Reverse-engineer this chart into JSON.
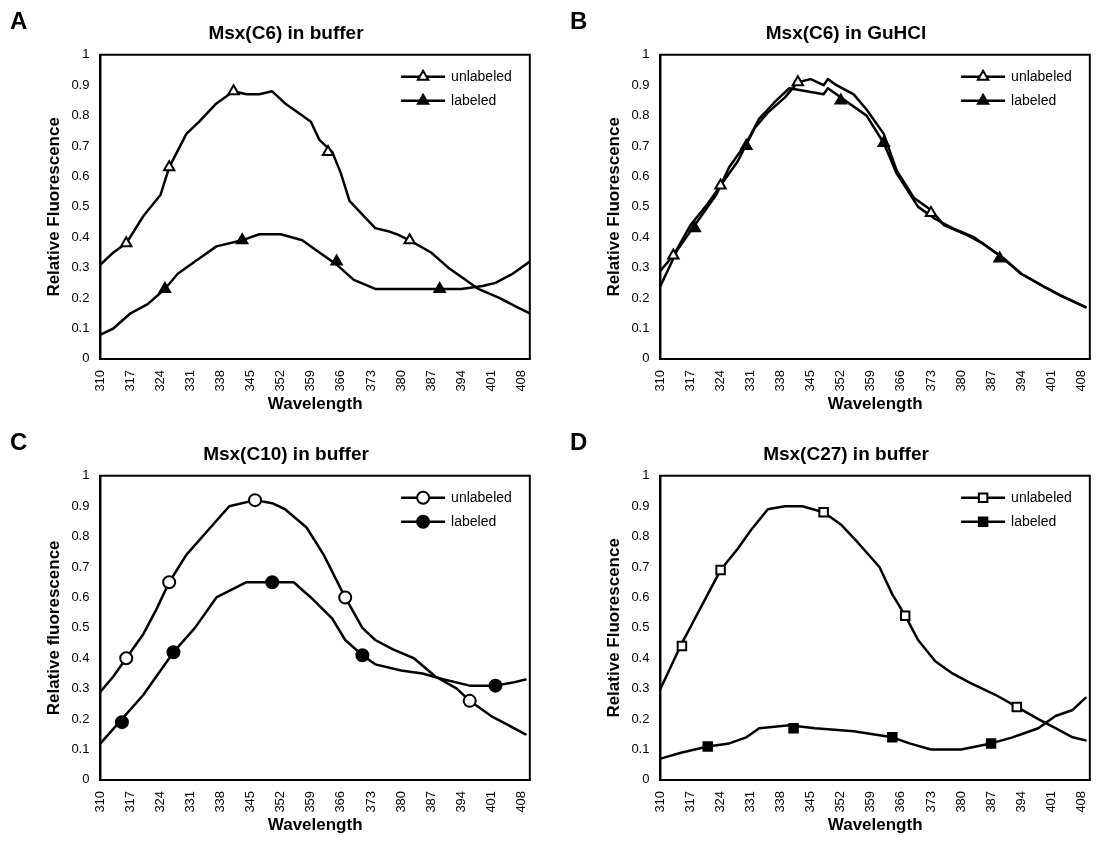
{
  "chart_data": [
    {
      "type": "line",
      "title": "Msx(C6) in buffer",
      "xlabel": "Wavelength",
      "ylabel": "Relative Fluorescence",
      "annotations": [
        "A"
      ],
      "xlim": [
        310,
        410
      ],
      "xticks": [
        310,
        317,
        324,
        331,
        338,
        345,
        352,
        359,
        366,
        373,
        380,
        387,
        394,
        401,
        408
      ],
      "ylim": [
        0,
        1
      ],
      "yticks": [
        0,
        0.1,
        0.2,
        0.3,
        0.4,
        0.5,
        0.6,
        0.7,
        0.8,
        0.9,
        1
      ],
      "legend": "top right",
      "series": [
        {
          "type": "line",
          "color": "#000000",
          "marker": "none",
          "x": [
            310,
            313,
            316,
            320,
            324,
            326,
            330,
            333,
            337,
            341,
            344,
            347,
            350,
            353,
            356,
            359,
            361,
            364,
            366,
            368,
            372,
            374,
            377,
            379,
            382,
            387,
            391,
            395,
            398,
            403,
            407,
            410
          ],
          "values": [
            0.31,
            0.35,
            0.38,
            0.47,
            0.54,
            0.63,
            0.74,
            0.78,
            0.84,
            0.88,
            0.87,
            0.87,
            0.88,
            0.84,
            0.81,
            0.78,
            0.72,
            0.68,
            0.61,
            0.52,
            0.46,
            0.43,
            0.42,
            0.41,
            0.39,
            0.35,
            0.3,
            0.26,
            0.23,
            0.2,
            0.17,
            0.15
          ]
        },
        {
          "type": "line",
          "color": "#000000",
          "marker": "none",
          "x": [
            310,
            313,
            317,
            321,
            325,
            328,
            332,
            337,
            343,
            347,
            352,
            357,
            360,
            365,
            369,
            374,
            377,
            383,
            388,
            394,
            399,
            402,
            406,
            410
          ],
          "values": [
            0.08,
            0.1,
            0.15,
            0.18,
            0.23,
            0.28,
            0.32,
            0.37,
            0.39,
            0.41,
            0.41,
            0.39,
            0.36,
            0.31,
            0.26,
            0.23,
            0.23,
            0.23,
            0.23,
            0.23,
            0.24,
            0.25,
            0.28,
            0.32
          ]
        },
        {
          "type": "scatter",
          "name": "unlabeled",
          "color": "#ffffff",
          "marker": "triangle",
          "x": [
            316,
            326,
            341,
            363,
            382
          ],
          "values": [
            0.38,
            0.63,
            0.88,
            0.68,
            0.39
          ]
        },
        {
          "type": "scatter",
          "name": "labeled",
          "color": "#000000",
          "marker": "triangle",
          "x": [
            325,
            343,
            365,
            389
          ],
          "values": [
            0.23,
            0.39,
            0.32,
            0.23
          ]
        }
      ]
    },
    {
      "type": "line",
      "title": "Msx(C6) in GuHCl",
      "xlabel": "Wavelength",
      "ylabel": "Relative Fluorescence",
      "annotations": [
        "B"
      ],
      "xlim": [
        310,
        410
      ],
      "xticks": [
        310,
        317,
        324,
        331,
        338,
        345,
        352,
        359,
        366,
        373,
        380,
        387,
        394,
        401,
        408
      ],
      "ylim": [
        0,
        1
      ],
      "yticks": [
        0,
        0.1,
        0.2,
        0.3,
        0.4,
        0.5,
        0.6,
        0.7,
        0.8,
        0.9,
        1
      ],
      "legend": "top right",
      "series": [
        {
          "type": "line",
          "color": "#000000",
          "marker": "none",
          "x": [
            310,
            313,
            317,
            321,
            324,
            328,
            332,
            335,
            339,
            342,
            345,
            348,
            349,
            351,
            355,
            358,
            362,
            365,
            369,
            373,
            376,
            381,
            385,
            390,
            394,
            399,
            403,
            409
          ],
          "values": [
            0.29,
            0.34,
            0.44,
            0.51,
            0.57,
            0.65,
            0.76,
            0.81,
            0.86,
            0.91,
            0.92,
            0.9,
            0.92,
            0.9,
            0.87,
            0.82,
            0.74,
            0.62,
            0.53,
            0.49,
            0.44,
            0.41,
            0.38,
            0.33,
            0.28,
            0.24,
            0.21,
            0.17
          ]
        },
        {
          "type": "line",
          "color": "#000000",
          "marker": "none",
          "x": [
            310,
            314,
            318,
            323,
            326,
            330,
            333,
            337,
            340,
            344,
            348,
            349,
            353,
            358,
            362,
            365,
            370,
            374,
            378,
            383,
            389,
            394,
            399,
            403,
            409
          ],
          "values": [
            0.24,
            0.36,
            0.44,
            0.54,
            0.63,
            0.71,
            0.79,
            0.85,
            0.89,
            0.88,
            0.87,
            0.89,
            0.85,
            0.8,
            0.71,
            0.61,
            0.5,
            0.46,
            0.43,
            0.4,
            0.34,
            0.28,
            0.24,
            0.21,
            0.17
          ]
        },
        {
          "type": "scatter",
          "name": "unlabeled",
          "color": "#ffffff",
          "marker": "triangle",
          "x": [
            313,
            324,
            342,
            373
          ],
          "values": [
            0.34,
            0.57,
            0.91,
            0.48
          ]
        },
        {
          "type": "scatter",
          "name": "labeled",
          "color": "#000000",
          "marker": "triangle",
          "x": [
            318,
            330,
            352,
            362,
            389
          ],
          "values": [
            0.43,
            0.7,
            0.85,
            0.71,
            0.33
          ]
        }
      ]
    },
    {
      "type": "line",
      "title": "Msx(C10) in buffer",
      "xlabel": "Wavelength",
      "ylabel": "Relative fluorescence",
      "annotations": [
        "C"
      ],
      "xlim": [
        310,
        410
      ],
      "xticks": [
        310,
        317,
        324,
        331,
        338,
        345,
        352,
        359,
        366,
        373,
        380,
        387,
        394,
        401,
        408
      ],
      "ylim": [
        0,
        1
      ],
      "yticks": [
        0,
        0.1,
        0.2,
        0.3,
        0.4,
        0.5,
        0.6,
        0.7,
        0.8,
        0.9,
        1
      ],
      "legend": "top right",
      "series": [
        {
          "type": "line",
          "color": "#000000",
          "marker": "none",
          "x": [
            310,
            313,
            316,
            320,
            323,
            326,
            330,
            335,
            340,
            346,
            350,
            353,
            358,
            362,
            367,
            371,
            374,
            378,
            383,
            388,
            393,
            396,
            401,
            405,
            409
          ],
          "values": [
            0.29,
            0.34,
            0.4,
            0.48,
            0.56,
            0.65,
            0.74,
            0.82,
            0.9,
            0.92,
            0.91,
            0.89,
            0.83,
            0.74,
            0.6,
            0.5,
            0.46,
            0.43,
            0.4,
            0.34,
            0.3,
            0.26,
            0.21,
            0.18,
            0.15
          ]
        },
        {
          "type": "line",
          "color": "#000000",
          "marker": "none",
          "x": [
            310,
            315,
            320,
            323,
            327,
            332,
            337,
            344,
            350,
            355,
            359,
            364,
            367,
            371,
            374,
            380,
            385,
            390,
            396,
            399,
            402,
            406,
            409
          ],
          "values": [
            0.12,
            0.2,
            0.28,
            0.34,
            0.42,
            0.5,
            0.6,
            0.65,
            0.65,
            0.65,
            0.6,
            0.53,
            0.46,
            0.41,
            0.38,
            0.36,
            0.35,
            0.33,
            0.31,
            0.31,
            0.31,
            0.32,
            0.33
          ]
        },
        {
          "type": "scatter",
          "name": "unlabeled",
          "color": "#ffffff",
          "marker": "circle",
          "x": [
            316,
            326,
            346,
            367,
            396
          ],
          "values": [
            0.4,
            0.65,
            0.92,
            0.6,
            0.26
          ]
        },
        {
          "type": "scatter",
          "name": "labeled",
          "color": "#000000",
          "marker": "circle",
          "x": [
            315,
            327,
            350,
            371,
            402
          ],
          "values": [
            0.19,
            0.42,
            0.65,
            0.41,
            0.31
          ]
        }
      ]
    },
    {
      "type": "line",
      "title": "Msx(C27) in buffer",
      "xlabel": "Wavelength",
      "ylabel": "Relative Fluorescence",
      "annotations": [
        "D"
      ],
      "xlim": [
        310,
        410
      ],
      "xticks": [
        310,
        317,
        324,
        331,
        338,
        345,
        352,
        359,
        366,
        373,
        380,
        387,
        394,
        401,
        408
      ],
      "ylim": [
        0,
        1
      ],
      "yticks": [
        0,
        0.1,
        0.2,
        0.3,
        0.4,
        0.5,
        0.6,
        0.7,
        0.8,
        0.9,
        1
      ],
      "legend": "top right",
      "series": [
        {
          "type": "line",
          "color": "#000000",
          "marker": "none",
          "x": [
            310,
            312,
            315,
            318,
            321,
            324,
            328,
            331,
            335,
            339,
            343,
            348,
            352,
            356,
            361,
            364,
            367,
            370,
            374,
            378,
            382,
            388,
            393,
            398,
            402,
            406,
            409
          ],
          "values": [
            0.3,
            0.36,
            0.45,
            0.53,
            0.61,
            0.69,
            0.76,
            0.82,
            0.89,
            0.9,
            0.9,
            0.88,
            0.84,
            0.78,
            0.7,
            0.61,
            0.54,
            0.46,
            0.39,
            0.35,
            0.32,
            0.28,
            0.24,
            0.2,
            0.17,
            0.14,
            0.13
          ]
        },
        {
          "type": "line",
          "color": "#000000",
          "marker": "none",
          "x": [
            310,
            315,
            321,
            326,
            330,
            333,
            340,
            346,
            355,
            364,
            368,
            373,
            380,
            387,
            392,
            398,
            402,
            406,
            409
          ],
          "values": [
            0.07,
            0.09,
            0.11,
            0.12,
            0.14,
            0.17,
            0.18,
            0.17,
            0.16,
            0.14,
            0.12,
            0.1,
            0.1,
            0.12,
            0.14,
            0.17,
            0.21,
            0.23,
            0.27
          ]
        },
        {
          "type": "scatter",
          "name": "unlabeled",
          "color": "#ffffff",
          "marker": "square",
          "x": [
            315,
            324,
            348,
            367,
            393
          ],
          "values": [
            0.44,
            0.69,
            0.88,
            0.54,
            0.24
          ]
        },
        {
          "type": "scatter",
          "name": "labeled",
          "color": "#000000",
          "marker": "square",
          "x": [
            321,
            341,
            364,
            387
          ],
          "values": [
            0.11,
            0.17,
            0.14,
            0.12
          ]
        }
      ]
    }
  ]
}
